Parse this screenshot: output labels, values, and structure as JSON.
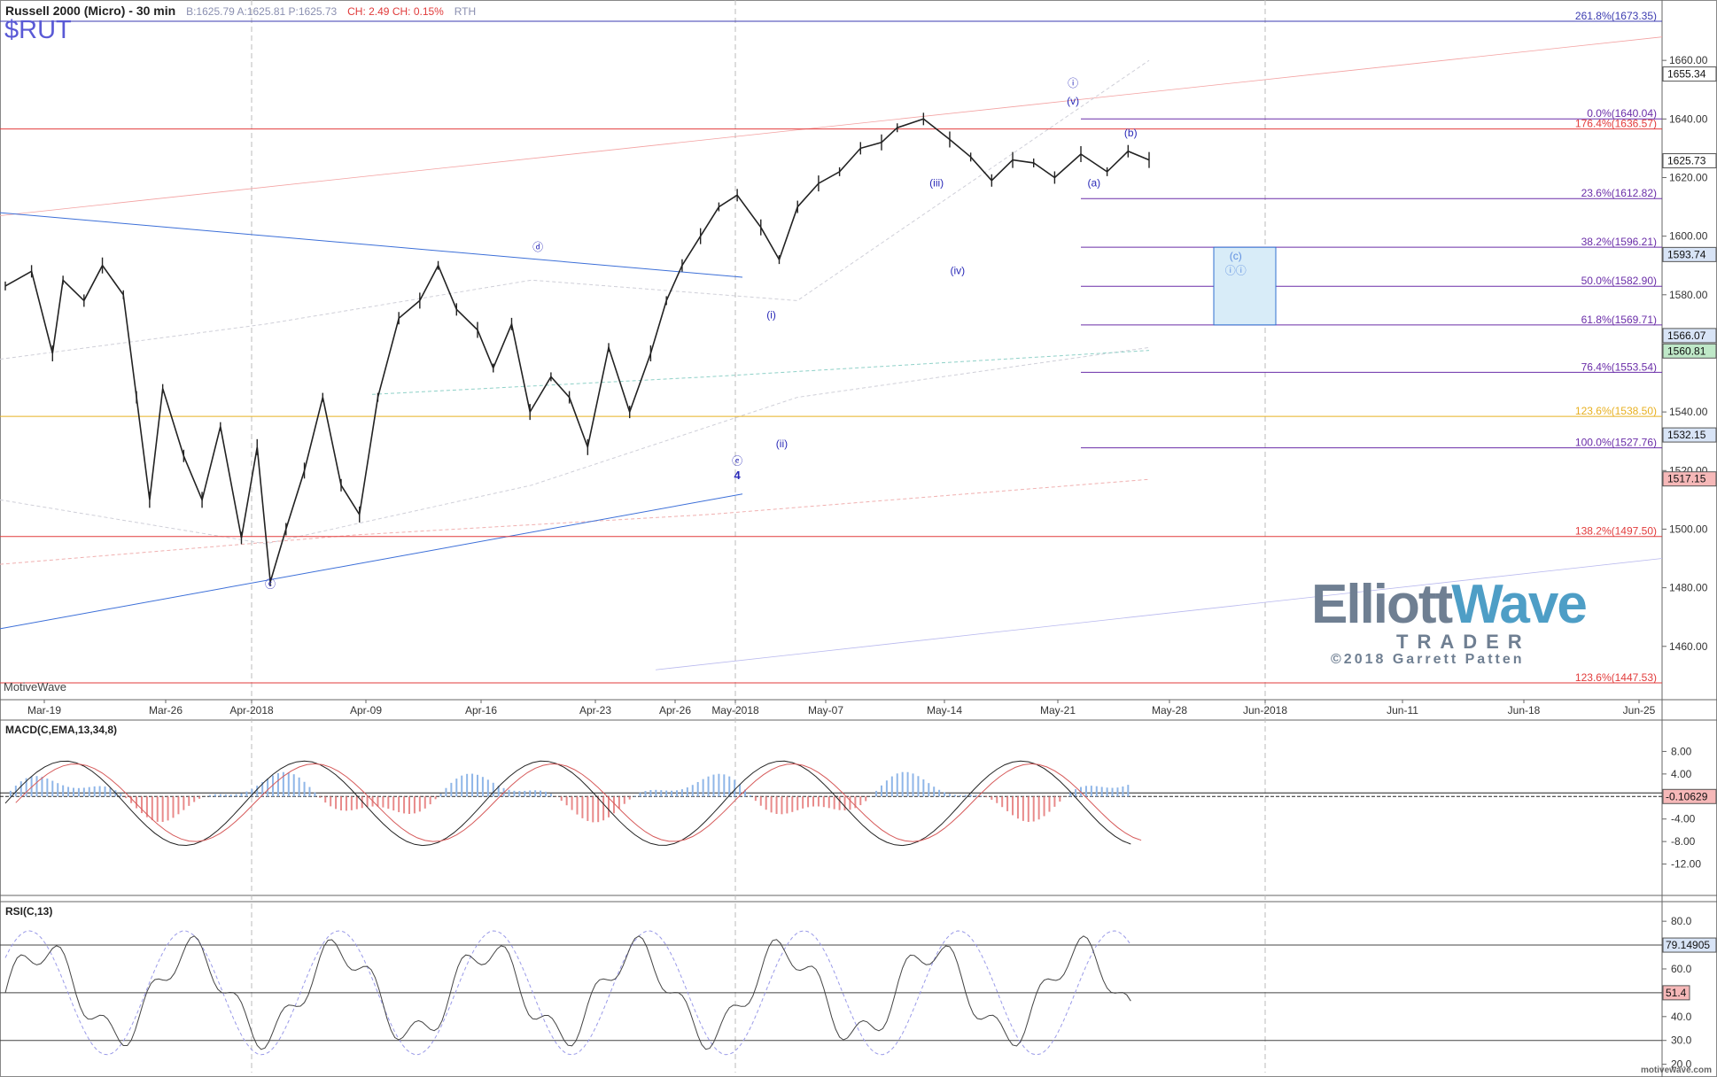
{
  "header": {
    "title": "Russell 2000 (Micro) - 30 min",
    "quote": "B:1625.79  A:1625.81  P:1625.73",
    "change": "CH: 2.49  CH: 0.15%",
    "session": "RTH",
    "symbol": "$RUT"
  },
  "footer": {
    "left": "MotiveWave",
    "brand": "motivewave.com"
  },
  "watermark": {
    "line1a": "Elliott",
    "line1b": "Wave",
    "line2": "TRADER",
    "line3": "©2018 Garrett Patten"
  },
  "chart_data": {
    "type": "line",
    "x_labels": [
      "Mar-19",
      "Mar-26",
      "Apr-2018",
      "Apr-09",
      "Apr-16",
      "Apr-23",
      "Apr-26",
      "May-2018",
      "May-07",
      "May-14",
      "May-21",
      "May-28",
      "Jun-2018",
      "Jun-11",
      "Jun-18",
      "Jun-25"
    ],
    "ylim": [
      1443,
      1680
    ],
    "y_ticks": [
      1460,
      1480,
      1500,
      1520,
      1540,
      1560,
      1580,
      1600,
      1620,
      1640,
      1660
    ],
    "price_path": {
      "x": [
        0,
        10,
        18,
        22,
        30,
        37,
        45,
        50,
        55,
        60,
        68,
        75,
        82,
        90,
        96,
        101,
        107,
        114,
        121,
        128,
        135,
        142,
        150,
        158,
        165,
        172,
        180,
        186,
        193,
        200,
        208,
        215,
        222,
        230,
        238,
        246,
        252,
        258,
        265,
        272,
        279,
        288,
        295,
        302,
        310,
        318,
        326,
        334,
        340,
        350,
        360,
        368,
        376,
        384,
        392,
        400,
        410,
        420,
        428,
        436
      ],
      "y": [
        1583,
        1588,
        1560,
        1585,
        1578,
        1590,
        1580,
        1545,
        1510,
        1548,
        1525,
        1510,
        1535,
        1497,
        1528,
        1482,
        1500,
        1520,
        1545,
        1515,
        1505,
        1545,
        1572,
        1578,
        1590,
        1575,
        1568,
        1555,
        1570,
        1540,
        1552,
        1545,
        1528,
        1562,
        1540,
        1560,
        1578,
        1590,
        1600,
        1610,
        1614,
        1603,
        1592,
        1610,
        1618,
        1622,
        1630,
        1632,
        1637,
        1640,
        1633,
        1627,
        1619,
        1626,
        1625,
        1620,
        1628,
        1622,
        1629,
        1626
      ]
    },
    "horizontal_levels": [
      {
        "label": "261.8%(1673.35)",
        "value": 1673.35,
        "color": "#3b3bb0"
      },
      {
        "label": "0.0%(1640.04)",
        "value": 1640.04,
        "color": "#6a2da8"
      },
      {
        "label": "176.4%(1636.57)",
        "value": 1636.57,
        "color": "#e23b3b"
      },
      {
        "label": "23.6%(1612.82)",
        "value": 1612.82,
        "color": "#6a2da8"
      },
      {
        "label": "38.2%(1596.21)",
        "value": 1596.21,
        "color": "#6a2da8"
      },
      {
        "label": "50.0%(1582.90)",
        "value": 1582.9,
        "color": "#6a2da8"
      },
      {
        "label": "61.8%(1569.71)",
        "value": 1569.71,
        "color": "#6a2da8"
      },
      {
        "label": "76.4%(1553.54)",
        "value": 1553.54,
        "color": "#6a2da8"
      },
      {
        "label": "123.6%(1538.50)",
        "value": 1538.5,
        "color": "#e8b020"
      },
      {
        "label": "100.0%(1527.76)",
        "value": 1527.76,
        "color": "#6a2da8"
      },
      {
        "label": "138.2%(1497.50)",
        "value": 1497.5,
        "color": "#e23b3b"
      },
      {
        "label": "123.6%(1447.53)",
        "value": 1447.53,
        "color": "#e23b3b"
      }
    ],
    "price_boxes": [
      {
        "text": "1655.34",
        "value": 1655.34
      },
      {
        "text": "1625.73",
        "value": 1625.73
      },
      {
        "text": "1593.74",
        "value": 1593.74
      },
      {
        "text": "1566.07",
        "value": 1566.07
      },
      {
        "text": "1560.81",
        "value": 1560.81
      },
      {
        "text": "1532.15",
        "value": 1532.15
      },
      {
        "text": "1517.15",
        "value": 1517.15
      }
    ],
    "wave_labels": [
      {
        "text": "ⓒ",
        "x": 101,
        "y": 1480
      },
      {
        "text": "ⓓ",
        "x": 203,
        "y": 1595
      },
      {
        "text": "ⓔ",
        "x": 279,
        "y": 1522
      },
      {
        "text": "4",
        "x": 279,
        "y": 1517
      },
      {
        "text": "(i)",
        "x": 292,
        "y": 1572
      },
      {
        "text": "(ii)",
        "x": 296,
        "y": 1528
      },
      {
        "text": "(iii)",
        "x": 355,
        "y": 1617
      },
      {
        "text": "(iv)",
        "x": 363,
        "y": 1587
      },
      {
        "text": "ⓘ",
        "x": 407,
        "y": 1651
      },
      {
        "text": "(v)",
        "x": 407,
        "y": 1645
      },
      {
        "text": "(a)",
        "x": 415,
        "y": 1617
      },
      {
        "text": "(b)",
        "x": 429,
        "y": 1634
      },
      {
        "text": "(c)",
        "x": 469,
        "y": 1592
      },
      {
        "text": "ⓘⓘ",
        "x": 469,
        "y": 1587
      }
    ],
    "macd": {
      "title": "MACD(C,EMA,13,34,8)",
      "ylim": [
        -16,
        12
      ],
      "y_ticks": [
        8.0,
        4.0,
        -4.0,
        -8.0,
        -12.0
      ],
      "last": "-0.10629"
    },
    "rsi": {
      "title": "RSI(C,13)",
      "ylim": [
        18,
        86
      ],
      "y_ticks": [
        80.0,
        60.0,
        40.0,
        30.0,
        20.0
      ],
      "last_a": "79.14905",
      "last_b": "51.4"
    }
  }
}
